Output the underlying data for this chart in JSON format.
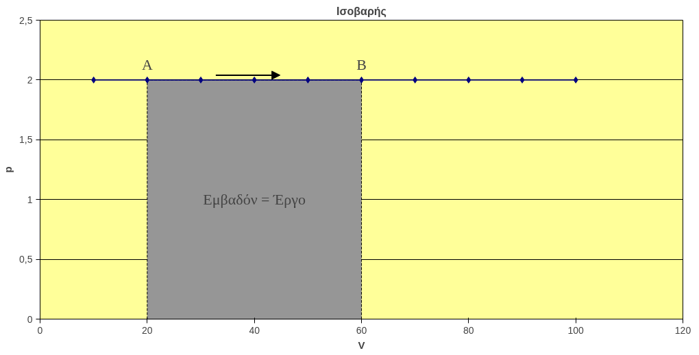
{
  "chart_data": {
    "type": "line",
    "title": "Ισοβαρής",
    "xlabel": "V",
    "ylabel": "p",
    "xlim": [
      0,
      120
    ],
    "xticks": [
      0,
      20,
      40,
      60,
      80,
      100,
      120
    ],
    "ylim": [
      0,
      2.5
    ],
    "yticks": [
      0,
      {
        "value": 0.5,
        "label": "0,5"
      },
      1,
      {
        "value": 1.5,
        "label": "1,5"
      },
      2,
      {
        "value": 2.5,
        "label": "2,5"
      }
    ],
    "grid": "y",
    "series": [
      {
        "type": "area",
        "color": "#969696",
        "x": [
          20,
          60
        ],
        "values": [
          2,
          2
        ]
      },
      {
        "color": "#000080",
        "marker": "diamond",
        "x": [
          10,
          20,
          30,
          40,
          50,
          60,
          70,
          80,
          90,
          100
        ],
        "values": [
          2,
          2,
          2,
          2,
          2,
          2,
          2,
          2,
          2,
          2
        ]
      }
    ],
    "annotations": [
      {
        "text": "A",
        "x": 20,
        "y": 2
      },
      {
        "text": "B",
        "x": 60,
        "y": 2
      },
      "Εμβαδόν = Έργο"
    ]
  }
}
